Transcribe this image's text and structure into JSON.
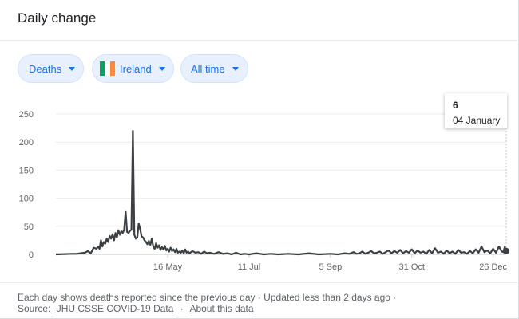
{
  "card": {
    "title": "Daily change"
  },
  "filters": {
    "metric": {
      "label": "Deaths"
    },
    "location": {
      "label": "Ireland",
      "flag_colors": [
        "#169b62",
        "#ffffff",
        "#ff883e"
      ]
    },
    "range": {
      "label": "All time"
    }
  },
  "tooltip": {
    "value": "6",
    "date": "04 January"
  },
  "footer": {
    "note": "Each day shows deaths reported since the previous day · Updated less than 2 days ago ·",
    "source_prefix": "Source:",
    "source_link": "JHU CSSE COVID-19 Data",
    "separator": "·",
    "about_link": "About this data"
  },
  "colors": {
    "accent": "#1a73e8",
    "chip_bg": "#e8f0fe",
    "line": "#3c4043",
    "grid": "#ebebeb"
  },
  "chart_data": {
    "type": "line",
    "title": "",
    "xlabel": "",
    "ylabel": "",
    "ylim": [
      0,
      250
    ],
    "yticks": [
      0,
      50,
      100,
      150,
      200,
      250
    ],
    "xticks": [
      "16 May",
      "11 Jul",
      "5 Sep",
      "31 Oct",
      "26 Dec"
    ],
    "xtick_dates": [
      "2020-05-16",
      "2020-07-11",
      "2020-09-05",
      "2020-10-31",
      "2020-12-26"
    ],
    "x_range": [
      "2020-02-29",
      "2021-01-04"
    ],
    "grid": true,
    "series": [
      {
        "points": [
          [
            "2020-02-29",
            0
          ],
          [
            "2020-03-11",
            1
          ],
          [
            "2020-03-14",
            1
          ],
          [
            "2020-03-17",
            2
          ],
          [
            "2020-03-20",
            3
          ],
          [
            "2020-03-22",
            6
          ],
          [
            "2020-03-24",
            2
          ],
          [
            "2020-03-25",
            7
          ],
          [
            "2020-03-26",
            12
          ],
          [
            "2020-03-28",
            10
          ],
          [
            "2020-03-29",
            14
          ],
          [
            "2020-03-30",
            10
          ],
          [
            "2020-03-31",
            25
          ],
          [
            "2020-04-01",
            14
          ],
          [
            "2020-04-02",
            22
          ],
          [
            "2020-04-03",
            19
          ],
          [
            "2020-04-04",
            28
          ],
          [
            "2020-04-05",
            22
          ],
          [
            "2020-04-06",
            33
          ],
          [
            "2020-04-07",
            28
          ],
          [
            "2020-04-08",
            36
          ],
          [
            "2020-04-09",
            25
          ],
          [
            "2020-04-10",
            38
          ],
          [
            "2020-04-11",
            30
          ],
          [
            "2020-04-12",
            43
          ],
          [
            "2020-04-13",
            35
          ],
          [
            "2020-04-14",
            41
          ],
          [
            "2020-04-15",
            38
          ],
          [
            "2020-04-16",
            44
          ],
          [
            "2020-04-17",
            77
          ],
          [
            "2020-04-18",
            40
          ],
          [
            "2020-04-19",
            38
          ],
          [
            "2020-04-20",
            42
          ],
          [
            "2020-04-21",
            44
          ],
          [
            "2020-04-22",
            220
          ],
          [
            "2020-04-23",
            35
          ],
          [
            "2020-04-24",
            28
          ],
          [
            "2020-04-25",
            30
          ],
          [
            "2020-04-26",
            55
          ],
          [
            "2020-04-27",
            45
          ],
          [
            "2020-04-28",
            32
          ],
          [
            "2020-04-29",
            30
          ],
          [
            "2020-04-30",
            25
          ],
          [
            "2020-05-01",
            22
          ],
          [
            "2020-05-02",
            18
          ],
          [
            "2020-05-03",
            24
          ],
          [
            "2020-05-04",
            17
          ],
          [
            "2020-05-05",
            28
          ],
          [
            "2020-05-06",
            14
          ],
          [
            "2020-05-07",
            10
          ],
          [
            "2020-05-08",
            20
          ],
          [
            "2020-05-09",
            12
          ],
          [
            "2020-05-10",
            16
          ],
          [
            "2020-05-11",
            8
          ],
          [
            "2020-05-12",
            13
          ],
          [
            "2020-05-13",
            9
          ],
          [
            "2020-05-14",
            15
          ],
          [
            "2020-05-15",
            7
          ],
          [
            "2020-05-16",
            10
          ],
          [
            "2020-05-17",
            5
          ],
          [
            "2020-05-18",
            12
          ],
          [
            "2020-05-19",
            6
          ],
          [
            "2020-05-20",
            9
          ],
          [
            "2020-05-21",
            4
          ],
          [
            "2020-05-22",
            10
          ],
          [
            "2020-05-23",
            3
          ],
          [
            "2020-05-24",
            5
          ],
          [
            "2020-05-25",
            3
          ],
          [
            "2020-05-26",
            7
          ],
          [
            "2020-05-27",
            2
          ],
          [
            "2020-05-28",
            9
          ],
          [
            "2020-05-29",
            3
          ],
          [
            "2020-05-30",
            5
          ],
          [
            "2020-05-31",
            2
          ],
          [
            "2020-06-02",
            6
          ],
          [
            "2020-06-04",
            3
          ],
          [
            "2020-06-06",
            4
          ],
          [
            "2020-06-08",
            1
          ],
          [
            "2020-06-10",
            5
          ],
          [
            "2020-06-12",
            2
          ],
          [
            "2020-06-14",
            3
          ],
          [
            "2020-06-17",
            1
          ],
          [
            "2020-06-20",
            4
          ],
          [
            "2020-06-23",
            1
          ],
          [
            "2020-06-26",
            2
          ],
          [
            "2020-06-29",
            0
          ],
          [
            "2020-07-02",
            3
          ],
          [
            "2020-07-05",
            0
          ],
          [
            "2020-07-08",
            1
          ],
          [
            "2020-07-11",
            0
          ],
          [
            "2020-07-16",
            2
          ],
          [
            "2020-07-21",
            0
          ],
          [
            "2020-07-26",
            1
          ],
          [
            "2020-07-31",
            0
          ],
          [
            "2020-08-07",
            1
          ],
          [
            "2020-08-14",
            0
          ],
          [
            "2020-08-21",
            2
          ],
          [
            "2020-08-28",
            0
          ],
          [
            "2020-09-05",
            1
          ],
          [
            "2020-09-10",
            0
          ],
          [
            "2020-09-15",
            2
          ],
          [
            "2020-09-18",
            1
          ],
          [
            "2020-09-21",
            4
          ],
          [
            "2020-09-23",
            1
          ],
          [
            "2020-09-25",
            2
          ],
          [
            "2020-09-27",
            5
          ],
          [
            "2020-09-29",
            1
          ],
          [
            "2020-10-01",
            3
          ],
          [
            "2020-10-03",
            6
          ],
          [
            "2020-10-05",
            2
          ],
          [
            "2020-10-07",
            3
          ],
          [
            "2020-10-09",
            5
          ],
          [
            "2020-10-11",
            1
          ],
          [
            "2020-10-13",
            4
          ],
          [
            "2020-10-15",
            7
          ],
          [
            "2020-10-17",
            2
          ],
          [
            "2020-10-19",
            6
          ],
          [
            "2020-10-21",
            3
          ],
          [
            "2020-10-23",
            8
          ],
          [
            "2020-10-25",
            2
          ],
          [
            "2020-10-27",
            6
          ],
          [
            "2020-10-29",
            3
          ],
          [
            "2020-10-31",
            9
          ],
          [
            "2020-11-02",
            2
          ],
          [
            "2020-11-04",
            7
          ],
          [
            "2020-11-06",
            3
          ],
          [
            "2020-11-08",
            5
          ],
          [
            "2020-11-10",
            1
          ],
          [
            "2020-11-12",
            8
          ],
          [
            "2020-11-14",
            2
          ],
          [
            "2020-11-16",
            11
          ],
          [
            "2020-11-18",
            3
          ],
          [
            "2020-11-20",
            5
          ],
          [
            "2020-11-22",
            1
          ],
          [
            "2020-11-24",
            7
          ],
          [
            "2020-11-26",
            2
          ],
          [
            "2020-11-28",
            5
          ],
          [
            "2020-11-30",
            1
          ],
          [
            "2020-12-02",
            8
          ],
          [
            "2020-12-04",
            3
          ],
          [
            "2020-12-06",
            4
          ],
          [
            "2020-12-08",
            1
          ],
          [
            "2020-12-10",
            6
          ],
          [
            "2020-12-12",
            2
          ],
          [
            "2020-12-14",
            9
          ],
          [
            "2020-12-16",
            3
          ],
          [
            "2020-12-18",
            14
          ],
          [
            "2020-12-20",
            4
          ],
          [
            "2020-12-22",
            7
          ],
          [
            "2020-12-24",
            2
          ],
          [
            "2020-12-26",
            10
          ],
          [
            "2020-12-28",
            3
          ],
          [
            "2020-12-30",
            14
          ],
          [
            "2021-01-01",
            5
          ],
          [
            "2021-01-02",
            4
          ],
          [
            "2021-01-03",
            13
          ],
          [
            "2021-01-04",
            6
          ]
        ]
      }
    ],
    "highlight": {
      "date": "2021-01-04",
      "value": 6
    }
  }
}
